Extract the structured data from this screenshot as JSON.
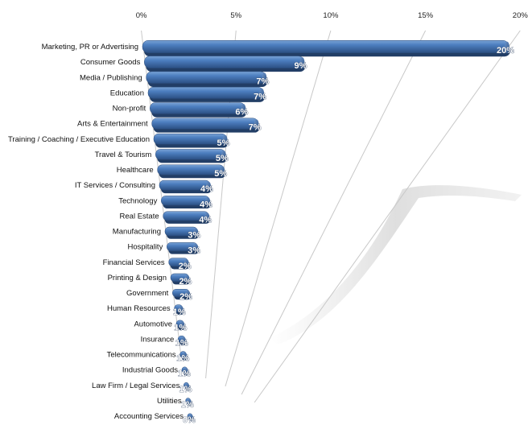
{
  "chart_data": {
    "type": "bar",
    "orientation": "horizontal",
    "style": "3d-perspective",
    "title": "",
    "xlabel": "",
    "ylabel": "",
    "xlim": [
      0,
      20
    ],
    "x_ticks": [
      "0%",
      "5%",
      "10%",
      "15%",
      "20%"
    ],
    "grid": true,
    "legend": "none",
    "bar_color": "#3c6aa8",
    "bar_highlight_color": "#6f98cf",
    "bar_shadow_color": "#27466f",
    "categories": [
      "Marketing, PR or Advertising",
      "Consumer Goods",
      "Media / Publishing",
      "Education",
      "Non-profit",
      "Arts & Entertainment",
      "Training / Coaching / Executive Education",
      "Travel & Tourism",
      "Healthcare",
      "IT Services / Consulting",
      "Technology",
      "Real Estate",
      "Manufacturing",
      "Hospitality",
      "Financial Services",
      "Printing & Design",
      "Government",
      "Human Resources",
      "Automotive",
      "Insurance",
      "Telecommunications",
      "Industrial Goods",
      "Law Firm / Legal Services",
      "Utilities",
      "Accounting Services"
    ],
    "values": [
      20,
      9,
      7,
      7,
      6,
      7,
      5,
      5,
      5,
      4,
      4,
      4,
      3,
      3,
      2,
      2,
      2,
      1,
      1,
      1,
      1,
      1,
      1,
      1,
      0
    ],
    "value_labels": [
      "20%",
      "9%",
      "7%",
      "7%",
      "6%",
      "7%",
      "5%",
      "5%",
      "5%",
      "4%",
      "4%",
      "4%",
      "3%",
      "3%",
      "2%",
      "2%",
      "2%",
      "1%",
      "1%",
      "1%",
      "1%",
      "1%",
      "1%",
      "1%",
      "0%"
    ]
  }
}
